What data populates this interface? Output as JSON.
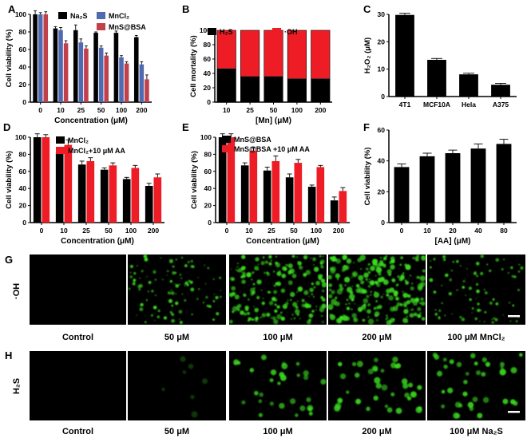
{
  "colors": {
    "black": "#000000",
    "blue": "#4f6ab0",
    "maroon": "#c0404c",
    "red": "#ee1c25",
    "green": "#3bdc1f",
    "scalebar": "#ffffff"
  },
  "panels": {
    "A": "A",
    "B": "B",
    "C": "C",
    "D": "D",
    "E": "E",
    "F": "F",
    "G": "G",
    "H": "H"
  },
  "micro": {
    "G": {
      "row_label": "·OH",
      "captions": [
        "Control",
        "50 μM",
        "100 μM",
        "200 μM",
        "100 μM MnCl₂"
      ],
      "intensity": [
        0.0,
        0.45,
        0.8,
        1.0,
        0.35
      ]
    },
    "H": {
      "row_label": "H₂S",
      "captions": [
        "Control",
        "50 μM",
        "100 μM",
        "200 μM",
        "100 μM Na₂S"
      ],
      "intensity": [
        0.0,
        0.1,
        0.6,
        0.75,
        0.7
      ]
    }
  },
  "chart_data": [
    {
      "id": "A",
      "type": "bar",
      "categories": [
        "0",
        "10",
        "25",
        "50",
        "100",
        "200"
      ],
      "xlabel": "Concentration (μM)",
      "ylabel": "Cell viability (%)",
      "ylim": [
        0,
        100
      ],
      "yticks": [
        0,
        20,
        40,
        60,
        80,
        100
      ],
      "legend_position": "top-right",
      "series": [
        {
          "name": "Na₂S",
          "color": "#000000",
          "values": [
            100,
            84,
            82,
            79,
            79,
            74
          ],
          "err": [
            4,
            2,
            6,
            1,
            2,
            2
          ]
        },
        {
          "name": "MnCl₂",
          "color": "#4f6ab0",
          "values": [
            100,
            82,
            68,
            62,
            51,
            43
          ],
          "err": [
            2,
            3,
            4,
            2,
            2,
            3
          ]
        },
        {
          "name": "MnS@BSA",
          "color": "#c0404c",
          "values": [
            100,
            67,
            61,
            53,
            44,
            26
          ],
          "err": [
            3,
            3,
            3,
            3,
            2,
            5
          ]
        }
      ]
    },
    {
      "id": "B",
      "type": "bar",
      "stacked": true,
      "categories": [
        "10",
        "25",
        "50",
        "100",
        "200"
      ],
      "xlabel": "[Mn] (μM)",
      "ylabel": "Cell mortality (%)",
      "ylim": [
        0,
        100
      ],
      "yticks": [
        0,
        20,
        40,
        60,
        80,
        100
      ],
      "legend_position": "top",
      "series": [
        {
          "name": "H₂S",
          "color": "#000000",
          "values": [
            47,
            36,
            36,
            33,
            33
          ]
        },
        {
          "name": "·OH",
          "color": "#ee1c25",
          "values": [
            53,
            64,
            64,
            67,
            67
          ]
        }
      ]
    },
    {
      "id": "C",
      "type": "bar",
      "categories": [
        "4T1",
        "MCF10A",
        "Hela",
        "A375"
      ],
      "xlabel": "",
      "ylabel": "H₂O₂ (μM)",
      "ylim": [
        0,
        30
      ],
      "yticks": [
        0,
        10,
        20,
        30
      ],
      "series": [
        {
          "name": "",
          "color": "#000000",
          "values": [
            29.8,
            13.4,
            8.1,
            4.3
          ],
          "err": [
            0.6,
            0.5,
            0.4,
            0.5
          ]
        }
      ]
    },
    {
      "id": "D",
      "type": "bar",
      "categories": [
        "0",
        "10",
        "25",
        "50",
        "100",
        "200"
      ],
      "xlabel": "Concentration (μM)",
      "ylabel": "Cell viability (%)",
      "ylim": [
        0,
        100
      ],
      "yticks": [
        0,
        20,
        40,
        60,
        80,
        100
      ],
      "legend_position": "top-right",
      "series": [
        {
          "name": "MnCl₂",
          "color": "#000000",
          "values": [
            100,
            82,
            68,
            62,
            51,
            43
          ],
          "err": [
            4,
            4,
            4,
            2,
            2,
            3
          ]
        },
        {
          "name": "MnCl₂+10 μM AA",
          "color": "#ee1c25",
          "values": [
            100,
            91,
            72,
            67,
            64,
            53
          ],
          "err": [
            3,
            6,
            4,
            3,
            3,
            4
          ]
        }
      ]
    },
    {
      "id": "E",
      "type": "bar",
      "categories": [
        "0",
        "10",
        "25",
        "50",
        "100",
        "200"
      ],
      "xlabel": "Concentration (μM)",
      "ylabel": "Cell viability (%)",
      "ylim": [
        0,
        100
      ],
      "yticks": [
        0,
        20,
        40,
        60,
        80,
        100
      ],
      "legend_position": "top-right",
      "series": [
        {
          "name": "MnS@BSA",
          "color": "#000000",
          "values": [
            100,
            67,
            61,
            53,
            42,
            26
          ],
          "err": [
            4,
            3,
            4,
            4,
            2,
            4
          ]
        },
        {
          "name": "MnS@BSA +10  μM AA",
          "color": "#ee1c25",
          "values": [
            100,
            84,
            72,
            70,
            65,
            37
          ],
          "err": [
            4,
            4,
            6,
            4,
            2,
            4
          ]
        }
      ]
    },
    {
      "id": "F",
      "type": "bar",
      "categories": [
        "0",
        "10",
        "20",
        "40",
        "80"
      ],
      "xlabel": "[AA] (μM)",
      "ylabel": "Cell viability (%)",
      "ylim": [
        0,
        60
      ],
      "yticks": [
        0,
        20,
        40,
        60
      ],
      "series": [
        {
          "name": "",
          "color": "#000000",
          "values": [
            36,
            43,
            45,
            48,
            51
          ],
          "err": [
            2,
            2,
            2,
            3,
            3
          ]
        }
      ]
    }
  ]
}
